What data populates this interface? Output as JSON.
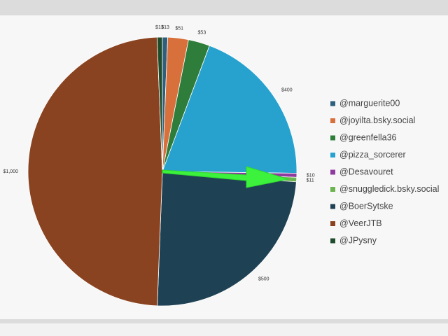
{
  "chart_data": {
    "type": "pie",
    "categories": [
      "@marguerite00",
      "@joyilta.bsky.social",
      "@greenfella36",
      "@pizza_sorcerer",
      "@Desavouret",
      "@snuggledick.bsky.social",
      "@BoerSytske",
      "@VeerJTB",
      "@JPysny"
    ],
    "values": [
      13,
      51,
      53,
      400,
      10,
      11,
      500,
      1000,
      13
    ],
    "value_labels": [
      "$13",
      "$51",
      "$53",
      "$400",
      "$10",
      "$11",
      "$500",
      "$1,000",
      "$13"
    ],
    "colors": [
      "#2e5f7d",
      "#d8703c",
      "#2e7d3a",
      "#27a2cf",
      "#8e3a9e",
      "#6cb44f",
      "#1f4154",
      "#8a4320",
      "#1f4d2b"
    ],
    "legend": "right"
  }
}
